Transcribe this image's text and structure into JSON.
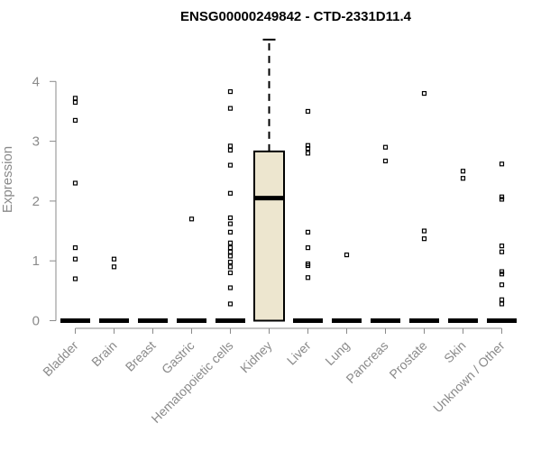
{
  "chart_data": {
    "type": "box",
    "title": "ENSG00000249842 - CTD-2331D11.4",
    "xlabel": "",
    "ylabel": "Expression",
    "ylim": [
      0,
      4.75
    ],
    "yticks": [
      0,
      1,
      2,
      3,
      4
    ],
    "categories": [
      "Bladder",
      "Brain",
      "Breast",
      "Gastric",
      "Hematopoietic cells",
      "Kidney",
      "Liver",
      "Lung",
      "Pancreas",
      "Prostate",
      "Skin",
      "Unknown / Other"
    ],
    "box_fill": "#ede6cf",
    "boxes": [
      {
        "category": "Bladder",
        "min": 0,
        "q1": 0,
        "median": 0,
        "q3": 0,
        "max": 0,
        "outliers": [
          0.7,
          1.03,
          1.22,
          2.3,
          3.35,
          3.65,
          3.72
        ]
      },
      {
        "category": "Brain",
        "min": 0,
        "q1": 0,
        "median": 0,
        "q3": 0,
        "max": 0,
        "outliers": [
          0.9,
          1.03
        ]
      },
      {
        "category": "Breast",
        "min": 0,
        "q1": 0,
        "median": 0,
        "q3": 0,
        "max": 0,
        "outliers": []
      },
      {
        "category": "Gastric",
        "min": 0,
        "q1": 0,
        "median": 0,
        "q3": 0,
        "max": 0,
        "outliers": [
          1.7
        ]
      },
      {
        "category": "Hematopoietic cells",
        "min": 0,
        "q1": 0,
        "median": 0,
        "q3": 0,
        "max": 0,
        "outliers": [
          0.28,
          0.55,
          0.8,
          0.9,
          0.98,
          1.08,
          1.15,
          1.22,
          1.3,
          1.48,
          1.62,
          1.72,
          2.13,
          2.6,
          2.85,
          2.92,
          3.55,
          3.83
        ]
      },
      {
        "category": "Kidney",
        "min": 0,
        "q1": 0,
        "median": 2.05,
        "q3": 2.83,
        "max": 4.7,
        "outliers": []
      },
      {
        "category": "Liver",
        "min": 0,
        "q1": 0,
        "median": 0,
        "q3": 0,
        "max": 0,
        "outliers": [
          0.72,
          0.92,
          0.95,
          1.22,
          1.48,
          2.8,
          2.88,
          2.93,
          3.5
        ]
      },
      {
        "category": "Lung",
        "min": 0,
        "q1": 0,
        "median": 0,
        "q3": 0,
        "max": 0,
        "outliers": [
          1.1
        ]
      },
      {
        "category": "Pancreas",
        "min": 0,
        "q1": 0,
        "median": 0,
        "q3": 0,
        "max": 0,
        "outliers": [
          2.67,
          2.9
        ]
      },
      {
        "category": "Prostate",
        "min": 0,
        "q1": 0,
        "median": 0,
        "q3": 0,
        "max": 0,
        "outliers": [
          1.37,
          1.5,
          3.8
        ]
      },
      {
        "category": "Skin",
        "min": 0,
        "q1": 0,
        "median": 0,
        "q3": 0,
        "max": 0,
        "outliers": [
          2.38,
          2.5
        ]
      },
      {
        "category": "Unknown / Other",
        "min": 0,
        "q1": 0,
        "median": 0,
        "q3": 0,
        "max": 0,
        "outliers": [
          0.28,
          0.35,
          0.6,
          0.78,
          0.82,
          1.15,
          1.25,
          2.03,
          2.07,
          2.62
        ]
      }
    ]
  }
}
